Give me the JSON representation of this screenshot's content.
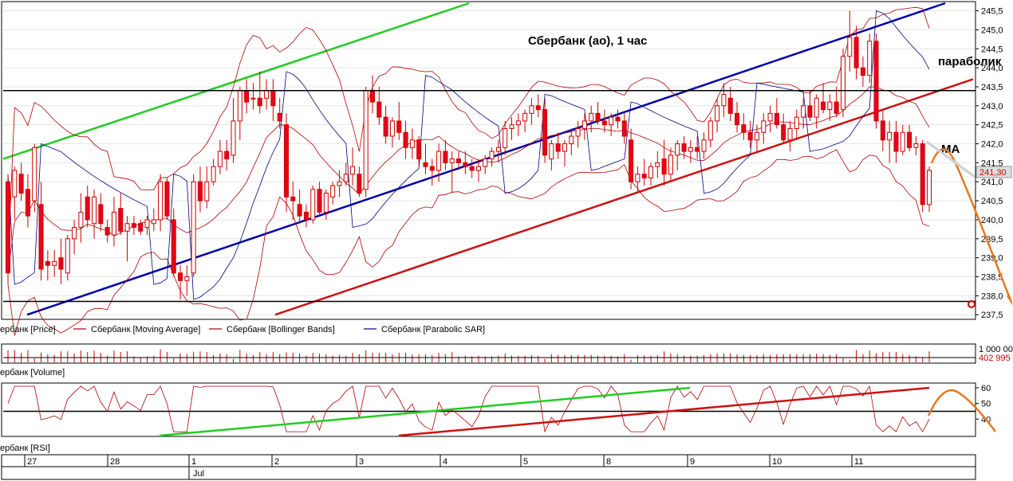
{
  "chart_data": {
    "type": "candlestick",
    "title": "Сбербанк (ао),  1 час",
    "price_axis": {
      "ylim": [
        237.4,
        245.7
      ],
      "ticks": [
        "245,5",
        "245,0",
        "244,5",
        "244,0",
        "243,5",
        "243,0",
        "242,5",
        "242,0",
        "241,5",
        "241,0",
        "240,5",
        "240,0",
        "239,5",
        "239,0",
        "238,5",
        "238,0",
        "237,5"
      ],
      "tick_values": [
        245.5,
        245.0,
        244.5,
        244.0,
        243.5,
        243.0,
        242.5,
        242.0,
        241.5,
        241.0,
        240.5,
        240.0,
        239.5,
        239.0,
        238.5,
        238.0,
        237.5
      ],
      "last_price_label": "241,30",
      "last_price": 241.3
    },
    "horizontal_levels": [
      243.4,
      237.85
    ],
    "legend": [
      {
        "label": "ербанк [Price]",
        "color": "#cc0000"
      },
      {
        "label": "Сбербанк [Moving Average]",
        "color": "#aa0000"
      },
      {
        "label": "Сбербанк [Bollinger Bands]",
        "color": "#aa0000"
      },
      {
        "label": "Сбербанк [Parabolic SAR]",
        "color": "#000080"
      }
    ],
    "annotations": [
      "параболик",
      "MA"
    ],
    "volume_panel": {
      "label": "ербанк [Volume]",
      "ticks": [
        "1 000 00",
        "402 995"
      ]
    },
    "rsi_panel": {
      "label": "ербанк [RSI]",
      "ylim": [
        30,
        62
      ],
      "ticks": [
        "60",
        "50",
        "40"
      ],
      "tick_values": [
        60,
        50,
        40
      ],
      "level": 45
    },
    "x_axis": {
      "days": [
        "27",
        "28",
        "1",
        "2",
        "3",
        "4",
        "5",
        "8",
        "9",
        "10",
        "11"
      ],
      "month": "Jul"
    },
    "candles": [
      [
        241.0,
        241.2,
        238.3,
        238.6
      ],
      [
        240.6,
        241.4,
        240.0,
        241.3
      ],
      [
        241.2,
        241.5,
        240.5,
        240.7
      ],
      [
        240.8,
        241.2,
        239.8,
        240.1
      ],
      [
        240.5,
        242.0,
        240.2,
        241.9
      ],
      [
        240.4,
        241.0,
        238.4,
        238.7
      ],
      [
        238.9,
        239.2,
        238.4,
        238.8
      ],
      [
        238.8,
        239.2,
        238.5,
        238.9
      ],
      [
        239.0,
        239.5,
        238.3,
        238.7
      ],
      [
        238.6,
        239.6,
        238.4,
        239.5
      ],
      [
        239.5,
        240.0,
        239.1,
        239.8
      ],
      [
        239.8,
        240.7,
        239.4,
        240.2
      ],
      [
        240.6,
        240.9,
        239.8,
        240.0
      ],
      [
        239.9,
        240.8,
        239.5,
        240.6
      ],
      [
        240.4,
        240.7,
        239.7,
        239.9
      ],
      [
        239.8,
        240.0,
        239.4,
        239.6
      ],
      [
        239.6,
        240.6,
        239.3,
        240.2
      ],
      [
        240.3,
        240.7,
        239.6,
        239.7
      ],
      [
        239.7,
        240.1,
        238.9,
        239.9
      ],
      [
        239.9,
        240.1,
        239.6,
        239.8
      ],
      [
        239.9,
        240.0,
        239.6,
        239.7
      ],
      [
        239.8,
        240.1,
        239.6,
        240.0
      ],
      [
        239.9,
        240.3,
        239.7,
        240.0
      ],
      [
        240.0,
        241.2,
        239.7,
        241.0
      ],
      [
        241.0,
        241.1,
        240.0,
        240.1
      ],
      [
        240.0,
        240.3,
        238.5,
        238.6
      ],
      [
        238.6,
        238.8,
        237.9,
        238.4
      ],
      [
        238.4,
        238.8,
        238.0,
        238.5
      ],
      [
        238.6,
        241.2,
        238.5,
        241.0
      ],
      [
        241.0,
        241.4,
        240.2,
        240.5
      ],
      [
        240.5,
        241.4,
        240.3,
        241.0
      ],
      [
        241.0,
        241.6,
        240.9,
        241.4
      ],
      [
        241.4,
        242.1,
        241.2,
        241.8
      ],
      [
        241.8,
        242.1,
        241.3,
        241.6
      ],
      [
        241.7,
        243.2,
        241.5,
        242.6
      ],
      [
        242.6,
        243.5,
        242.1,
        243.4
      ],
      [
        243.4,
        243.7,
        242.8,
        243.1
      ],
      [
        243.2,
        243.6,
        242.9,
        243.2
      ],
      [
        243.2,
        243.9,
        242.8,
        243.0
      ],
      [
        243.2,
        243.7,
        242.9,
        243.4
      ],
      [
        243.4,
        243.7,
        242.6,
        243.0
      ],
      [
        242.8,
        243.2,
        242.4,
        242.6
      ],
      [
        242.5,
        242.8,
        240.2,
        240.6
      ],
      [
        240.6,
        241.0,
        240.0,
        240.5
      ],
      [
        240.4,
        240.8,
        239.9,
        240.1
      ],
      [
        240.2,
        240.4,
        239.8,
        240.0
      ],
      [
        240.0,
        240.9,
        239.9,
        240.8
      ],
      [
        240.8,
        241.0,
        240.1,
        240.2
      ],
      [
        240.2,
        240.8,
        240.0,
        240.7
      ],
      [
        240.6,
        241.0,
        240.4,
        240.9
      ],
      [
        240.9,
        241.3,
        240.6,
        241.0
      ],
      [
        241.0,
        241.5,
        240.9,
        241.2
      ],
      [
        241.2,
        241.9,
        240.9,
        241.4
      ],
      [
        241.2,
        241.4,
        240.6,
        240.7
      ],
      [
        240.8,
        243.5,
        240.6,
        243.4
      ],
      [
        243.4,
        243.8,
        242.8,
        243.1
      ],
      [
        243.1,
        243.5,
        242.5,
        242.7
      ],
      [
        242.7,
        243.0,
        242.0,
        242.2
      ],
      [
        242.2,
        242.7,
        241.9,
        242.6
      ],
      [
        242.6,
        243.1,
        242.1,
        242.3
      ],
      [
        242.3,
        242.6,
        241.6,
        241.9
      ],
      [
        241.9,
        242.4,
        241.6,
        242.1
      ],
      [
        242.1,
        242.2,
        241.4,
        241.6
      ],
      [
        241.5,
        242.0,
        241.2,
        241.4
      ],
      [
        241.4,
        241.6,
        240.9,
        241.3
      ],
      [
        241.3,
        242.0,
        241.0,
        241.8
      ],
      [
        241.8,
        242.1,
        241.3,
        241.5
      ],
      [
        241.5,
        241.8,
        240.7,
        241.6
      ],
      [
        241.6,
        241.8,
        241.3,
        241.5
      ],
      [
        241.5,
        241.8,
        241.2,
        241.4
      ],
      [
        241.4,
        241.6,
        241.1,
        241.3
      ],
      [
        241.3,
        241.6,
        241.0,
        241.4
      ],
      [
        241.4,
        241.7,
        241.2,
        241.6
      ],
      [
        241.6,
        241.9,
        241.4,
        241.8
      ],
      [
        241.8,
        242.1,
        241.5,
        241.9
      ],
      [
        241.9,
        242.6,
        241.7,
        242.4
      ],
      [
        242.4,
        242.7,
        242.1,
        242.5
      ],
      [
        242.5,
        242.8,
        242.2,
        242.6
      ],
      [
        242.6,
        242.9,
        242.3,
        242.8
      ],
      [
        242.8,
        243.2,
        242.5,
        243.0
      ],
      [
        243.0,
        243.3,
        242.7,
        242.9
      ],
      [
        242.9,
        243.2,
        241.5,
        241.7
      ],
      [
        241.6,
        242.1,
        241.3,
        242.0
      ],
      [
        242.0,
        242.3,
        241.6,
        241.8
      ],
      [
        241.8,
        242.1,
        241.4,
        242.0
      ],
      [
        242.0,
        242.4,
        241.7,
        242.2
      ],
      [
        242.2,
        242.6,
        241.9,
        242.4
      ],
      [
        242.4,
        242.8,
        242.1,
        242.6
      ],
      [
        242.6,
        243.0,
        242.3,
        242.8
      ],
      [
        242.8,
        243.1,
        242.5,
        242.6
      ],
      [
        242.6,
        242.9,
        242.3,
        242.5
      ],
      [
        242.5,
        242.8,
        242.2,
        242.7
      ],
      [
        242.7,
        242.9,
        242.4,
        242.6
      ],
      [
        242.6,
        242.8,
        242.0,
        242.2
      ],
      [
        242.1,
        242.4,
        240.8,
        241.0
      ],
      [
        241.0,
        241.4,
        240.7,
        241.2
      ],
      [
        241.2,
        241.6,
        240.9,
        241.1
      ],
      [
        241.1,
        241.5,
        240.9,
        241.4
      ],
      [
        241.4,
        241.8,
        241.1,
        241.5
      ],
      [
        241.6,
        242.1,
        240.9,
        241.2
      ],
      [
        241.2,
        241.9,
        241.0,
        241.7
      ],
      [
        241.7,
        242.1,
        241.3,
        242.0
      ],
      [
        242.0,
        242.2,
        241.6,
        241.8
      ],
      [
        241.8,
        242.1,
        241.5,
        241.9
      ],
      [
        241.9,
        242.2,
        241.6,
        241.8
      ],
      [
        241.8,
        242.3,
        241.6,
        242.1
      ],
      [
        242.1,
        242.7,
        241.9,
        242.6
      ],
      [
        242.6,
        243.2,
        242.3,
        243.0
      ],
      [
        243.0,
        243.6,
        242.7,
        243.3
      ],
      [
        243.2,
        243.5,
        242.6,
        242.8
      ],
      [
        242.8,
        243.1,
        242.3,
        242.5
      ],
      [
        242.5,
        242.8,
        242.1,
        242.3
      ],
      [
        242.3,
        242.6,
        241.9,
        242.1
      ],
      [
        242.1,
        242.5,
        241.8,
        242.3
      ],
      [
        242.3,
        242.8,
        242.0,
        242.6
      ],
      [
        242.6,
        243.0,
        242.3,
        242.8
      ],
      [
        242.8,
        243.2,
        242.4,
        242.5
      ],
      [
        242.5,
        242.8,
        242.0,
        242.1
      ],
      [
        242.1,
        242.6,
        241.8,
        242.4
      ],
      [
        242.4,
        242.9,
        242.1,
        242.7
      ],
      [
        242.7,
        243.2,
        242.4,
        243.0
      ],
      [
        243.0,
        243.4,
        242.6,
        242.7
      ],
      [
        242.7,
        243.3,
        242.4,
        243.2
      ],
      [
        243.1,
        243.6,
        242.8,
        242.9
      ],
      [
        242.9,
        243.3,
        242.6,
        243.1
      ],
      [
        243.1,
        243.5,
        242.7,
        242.8
      ],
      [
        242.9,
        244.5,
        242.7,
        244.3
      ],
      [
        244.3,
        245.5,
        243.9,
        244.8
      ],
      [
        244.8,
        245.1,
        243.7,
        244.0
      ],
      [
        244.0,
        244.3,
        243.5,
        243.8
      ],
      [
        243.8,
        244.9,
        243.6,
        244.7
      ],
      [
        244.7,
        244.9,
        242.4,
        242.6
      ],
      [
        242.6,
        242.9,
        241.8,
        242.1
      ],
      [
        242.1,
        242.6,
        241.5,
        242.3
      ],
      [
        242.3,
        242.6,
        241.5,
        241.8
      ],
      [
        241.8,
        242.5,
        241.7,
        242.3
      ],
      [
        242.3,
        242.5,
        241.8,
        241.9
      ],
      [
        241.9,
        242.2,
        241.7,
        242.0
      ],
      [
        242.0,
        242.1,
        240.2,
        240.4
      ],
      [
        240.4,
        241.4,
        240.2,
        241.3
      ]
    ]
  }
}
